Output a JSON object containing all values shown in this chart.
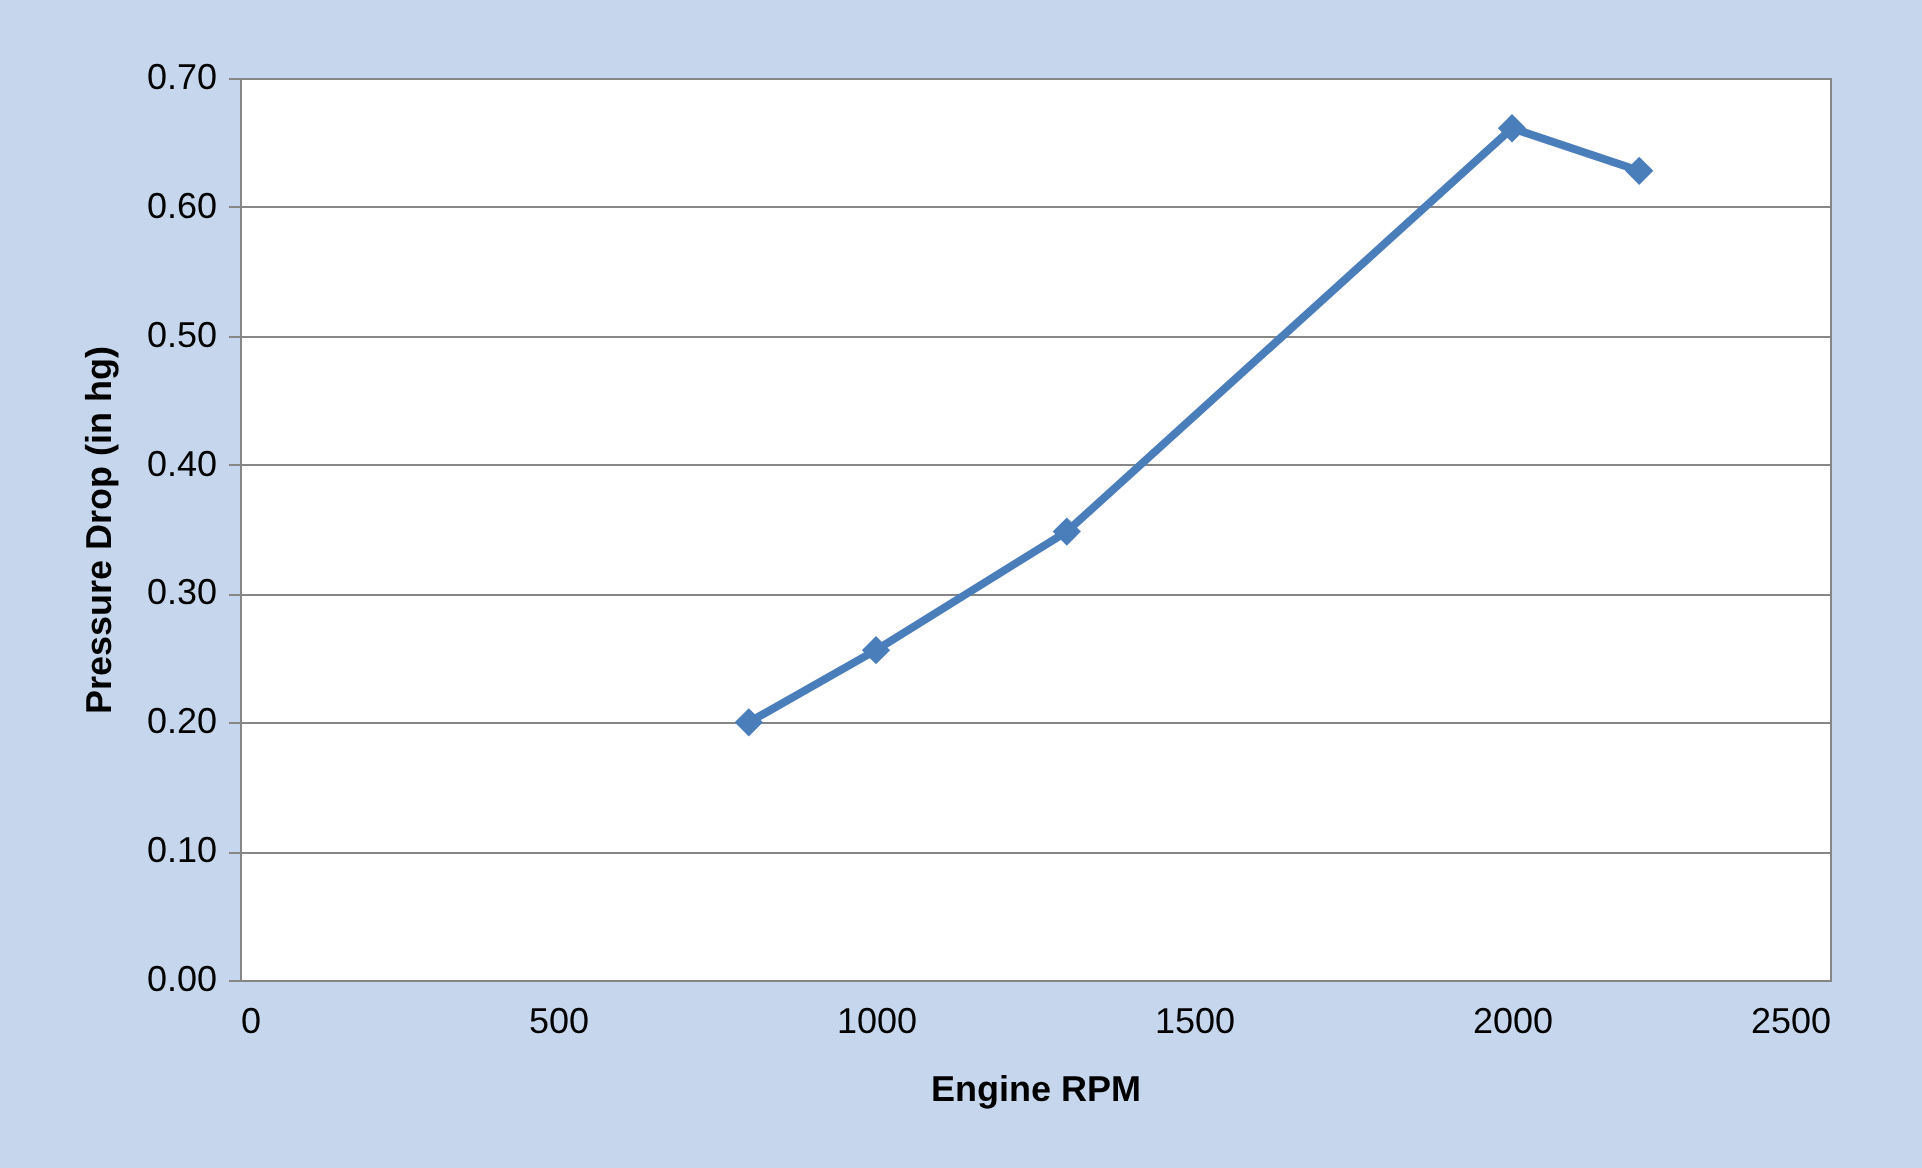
{
  "chart_data": {
    "type": "line",
    "xlabel": "Engine RPM",
    "ylabel": "Pressure Drop (in hg)",
    "x": [
      800,
      1000,
      1300,
      2000,
      2200
    ],
    "series": [
      {
        "color": "#4a7ebb",
        "values": [
          0.2,
          0.256,
          0.348,
          0.661,
          0.628
        ]
      }
    ],
    "xlim": [
      0,
      2500
    ],
    "xticks": [
      0,
      500,
      1000,
      1500,
      2000,
      2500
    ],
    "ylim": [
      0,
      0.7
    ],
    "yticks": [
      {
        "value": 0,
        "label": "0.00"
      },
      {
        "value": 0.1,
        "label": "0.10"
      },
      {
        "value": 0.2,
        "label": "0.20"
      },
      {
        "value": 0.3,
        "label": "0.30"
      },
      {
        "value": 0.4,
        "label": "0.40"
      },
      {
        "value": 0.5,
        "label": "0.50"
      },
      {
        "value": 0.6,
        "label": "0.60"
      },
      {
        "value": 0.7,
        "label": "0.70"
      }
    ],
    "grid": "y",
    "marker": "diamond",
    "line_style": "solid",
    "legend": false
  }
}
